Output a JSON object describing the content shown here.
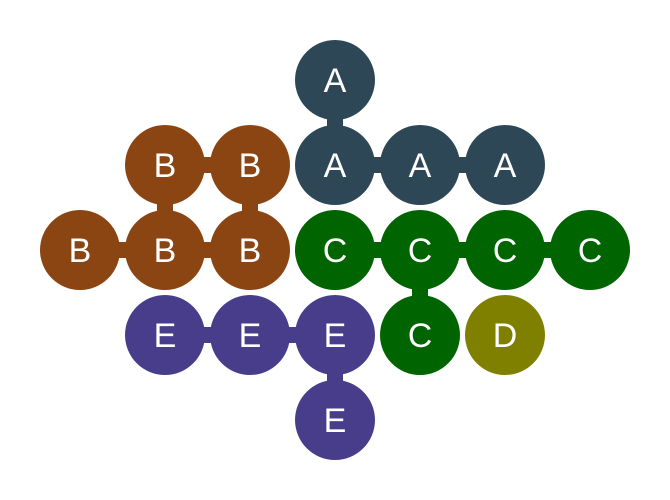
{
  "colors": {
    "A": "#2e4756",
    "B": "#8b4513",
    "C": "#006400",
    "D": "#808000",
    "E": "#483d8b"
  },
  "grid": {
    "rows": [
      [
        null,
        null,
        null,
        "A",
        null,
        null,
        null
      ],
      [
        null,
        "B",
        "B",
        "A",
        "A",
        "A",
        null
      ],
      [
        "B",
        "B",
        "B",
        "C",
        "C",
        "C",
        "C"
      ],
      [
        null,
        "E",
        "E",
        "E",
        "C",
        "D",
        null
      ],
      [
        null,
        null,
        null,
        "E",
        null,
        null,
        null
      ]
    ]
  }
}
